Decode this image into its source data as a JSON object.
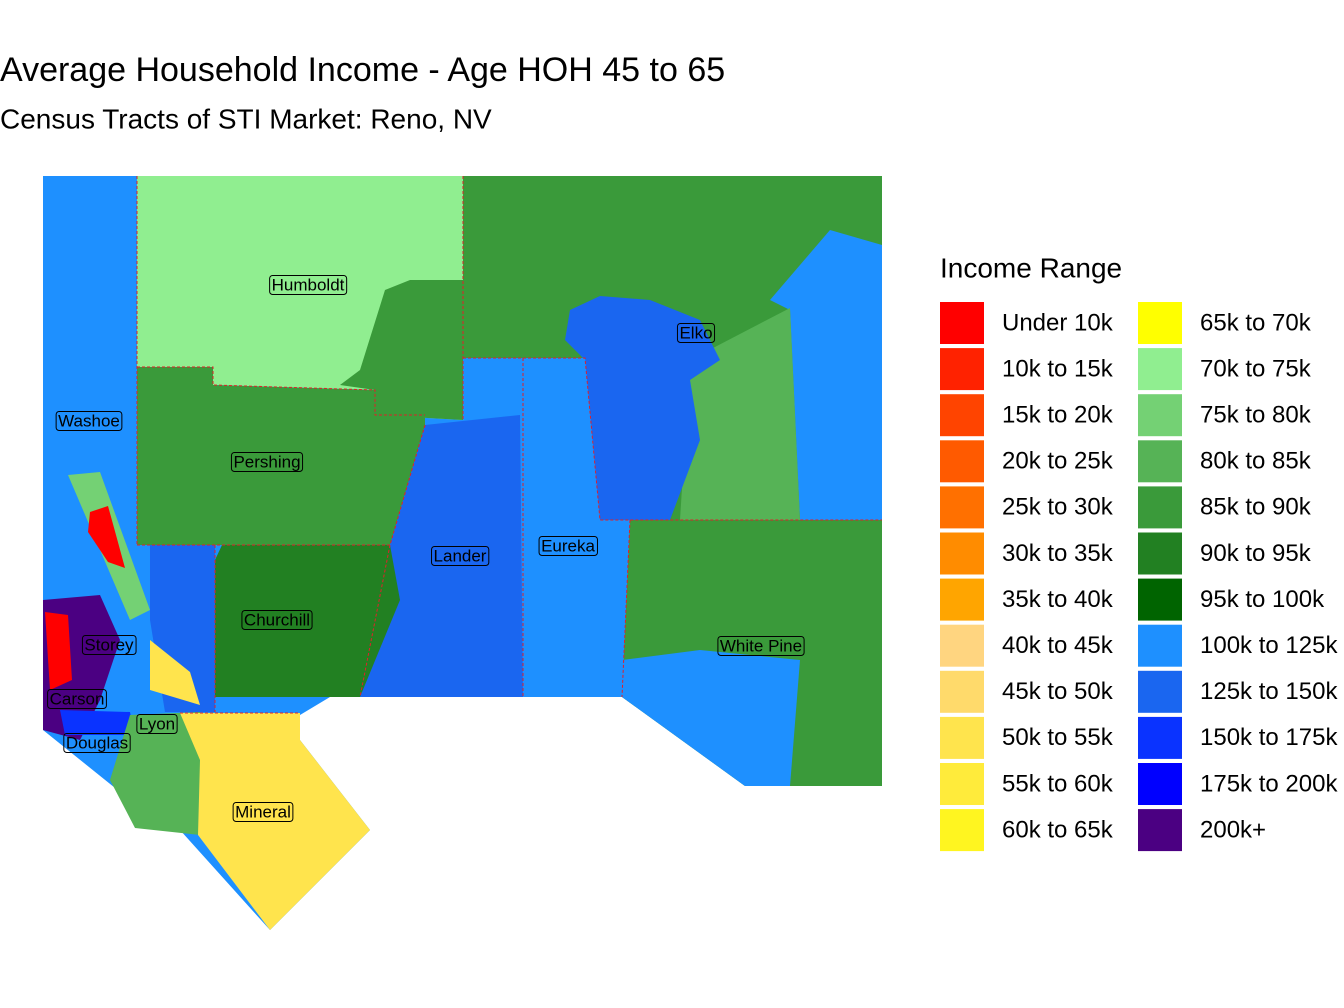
{
  "title": "Average Household Income - Age HOH 45 to 65",
  "subtitle": "Census Tracts of STI Market: Reno, NV",
  "legend": {
    "title": "Income Range",
    "items": [
      {
        "label": "Under 10k",
        "color": "#FF0000"
      },
      {
        "label": "10k to 15k",
        "color": "#FF2200"
      },
      {
        "label": "15k to 20k",
        "color": "#FF4400"
      },
      {
        "label": "20k to 25k",
        "color": "#FF5A00"
      },
      {
        "label": "25k to 30k",
        "color": "#FF7000"
      },
      {
        "label": "30k to 35k",
        "color": "#FF8C00"
      },
      {
        "label": "35k to 40k",
        "color": "#FFA500"
      },
      {
        "label": "40k to 45k",
        "color": "#FFD580"
      },
      {
        "label": "45k to 50k",
        "color": "#FFDA6B"
      },
      {
        "label": "50k to 55k",
        "color": "#FFE44D"
      },
      {
        "label": "55k to 60k",
        "color": "#FFEB3B"
      },
      {
        "label": "60k to 65k",
        "color": "#FFF520"
      },
      {
        "label": "65k to 70k",
        "color": "#FFFF00"
      },
      {
        "label": "70k to 75k",
        "color": "#90EE90"
      },
      {
        "label": "75k to 80k",
        "color": "#74D174"
      },
      {
        "label": "80k to 85k",
        "color": "#56B356"
      },
      {
        "label": "85k to 90k",
        "color": "#3A9A3A"
      },
      {
        "label": "90k to 95k",
        "color": "#228022"
      },
      {
        "label": "95k to 100k",
        "color": "#006400"
      },
      {
        "label": "100k to 125k",
        "color": "#1E90FF"
      },
      {
        "label": "125k to 150k",
        "color": "#1A66F0"
      },
      {
        "label": "150k to 175k",
        "color": "#0A33FF"
      },
      {
        "label": "175k to 200k",
        "color": "#0000FF"
      },
      {
        "label": "200k+",
        "color": "#4B0082"
      }
    ]
  },
  "counties": [
    {
      "name": "Humboldt"
    },
    {
      "name": "Washoe"
    },
    {
      "name": "Pershing"
    },
    {
      "name": "Elko"
    },
    {
      "name": "Lander"
    },
    {
      "name": "Eureka"
    },
    {
      "name": "Churchill"
    },
    {
      "name": "Storey"
    },
    {
      "name": "White Pine"
    },
    {
      "name": "Carson"
    },
    {
      "name": "Lyon"
    },
    {
      "name": "Douglas"
    },
    {
      "name": "Mineral"
    }
  ]
}
